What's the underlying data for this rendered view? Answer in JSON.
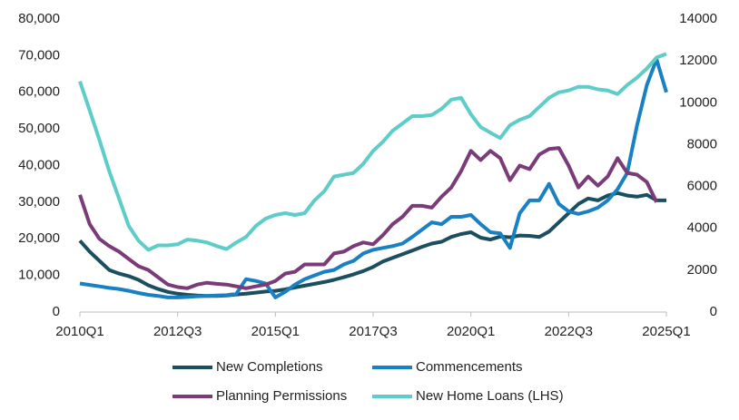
{
  "chart_data": {
    "type": "line",
    "categories": [
      "2010Q1",
      null,
      null,
      null,
      null,
      null,
      null,
      null,
      null,
      null,
      "2012Q3",
      null,
      null,
      null,
      null,
      null,
      null,
      null,
      null,
      null,
      "2015Q1",
      null,
      null,
      null,
      null,
      null,
      null,
      null,
      null,
      null,
      "2017Q3",
      null,
      null,
      null,
      null,
      null,
      null,
      null,
      null,
      null,
      "2020Q1",
      null,
      null,
      null,
      null,
      null,
      null,
      null,
      null,
      null,
      "2022Q3",
      null,
      null,
      null,
      null,
      null,
      null,
      null,
      null,
      null,
      "2025Q1"
    ],
    "series": [
      {
        "name": "New Completions",
        "color": "#1b4f5f",
        "values": [
          19500,
          16500,
          14000,
          11500,
          10500,
          9800,
          8800,
          7300,
          6300,
          5500,
          5000,
          4700,
          4500,
          4400,
          4400,
          4500,
          4800,
          5000,
          5300,
          5600,
          5800,
          6200,
          6700,
          7200,
          7700,
          8200,
          8800,
          9500,
          10300,
          11200,
          12300,
          13800,
          14800,
          15800,
          16800,
          17800,
          18700,
          19200,
          20500,
          21300,
          21800,
          20300,
          19800,
          20600,
          20400,
          20900,
          20800,
          20500,
          22000,
          24500,
          27000,
          29500,
          31000,
          30500,
          31800,
          32500,
          31800,
          31500,
          32000,
          30500,
          30500
        ]
      },
      {
        "name": "Commencements",
        "color": "#1a80c4",
        "values": [
          7800,
          7400,
          7000,
          6600,
          6300,
          5800,
          5200,
          4700,
          4400,
          4000,
          4000,
          4100,
          4300,
          4400,
          4500,
          4600,
          5000,
          9000,
          8500,
          7800,
          4000,
          5500,
          7500,
          9000,
          10000,
          11000,
          11500,
          13000,
          14000,
          16000,
          17000,
          17500,
          18000,
          18700,
          20500,
          22500,
          24500,
          24000,
          26000,
          26000,
          26500,
          24000,
          21800,
          21500,
          17500,
          27000,
          30500,
          30500,
          35000,
          29500,
          27500,
          26800,
          27500,
          28500,
          30500,
          33500,
          38000,
          51000,
          62000,
          69000,
          60000
        ]
      },
      {
        "name": "Planning Permissions",
        "color": "#7a3b78",
        "values": [
          32000,
          24000,
          20000,
          18000,
          16500,
          14500,
          12500,
          11500,
          9500,
          7500,
          6800,
          6500,
          7500,
          8000,
          7700,
          7500,
          7000,
          6500,
          7000,
          7500,
          8500,
          10500,
          11000,
          13000,
          13000,
          13000,
          16000,
          16500,
          18000,
          19000,
          18500,
          21000,
          24000,
          26000,
          29000,
          29000,
          28500,
          31500,
          34000,
          38500,
          44000,
          41500,
          44000,
          42000,
          36000,
          40000,
          39000,
          43000,
          44500,
          44800,
          40000,
          34000,
          37000,
          34500,
          37000,
          42000,
          38000,
          37500,
          35500,
          30000,
          null
        ]
      },
      {
        "name": "New Home Loans (LHS)",
        "color": "#5ecdc8",
        "values": [
          63000,
          55000,
          47000,
          38500,
          31000,
          23500,
          19500,
          17000,
          18200,
          18200,
          18500,
          19800,
          19500,
          19000,
          18000,
          17200,
          19000,
          20500,
          23500,
          25500,
          26500,
          27000,
          26500,
          27000,
          30500,
          33000,
          37000,
          37500,
          38000,
          40500,
          44000,
          46500,
          49500,
          51500,
          53500,
          53500,
          53800,
          55500,
          58000,
          58500,
          54000,
          50500,
          49000,
          47500,
          51000,
          52500,
          53500,
          56000,
          58500,
          60000,
          60500,
          61500,
          61500,
          60800,
          60500,
          59500,
          62000,
          64000,
          66500,
          69500,
          70500
        ]
      }
    ],
    "ylim": [
      0,
      80000
    ],
    "yticks": [
      0,
      {
        "value": 10000,
        "label": "10,000"
      },
      {
        "value": 20000,
        "label": "20,000"
      },
      {
        "value": 30000,
        "label": "30,000"
      },
      {
        "value": 40000,
        "label": "40,000"
      },
      {
        "value": 50000,
        "label": "50,000"
      },
      {
        "value": 60000,
        "label": "60,000"
      },
      {
        "value": 70000,
        "label": "70,000"
      },
      {
        "value": 80000,
        "label": "80,000"
      }
    ],
    "y2lim": [
      0,
      14000
    ],
    "y2ticks": [
      0,
      2000,
      4000,
      6000,
      8000,
      10000,
      12000,
      14000
    ],
    "legend": "bottom"
  }
}
